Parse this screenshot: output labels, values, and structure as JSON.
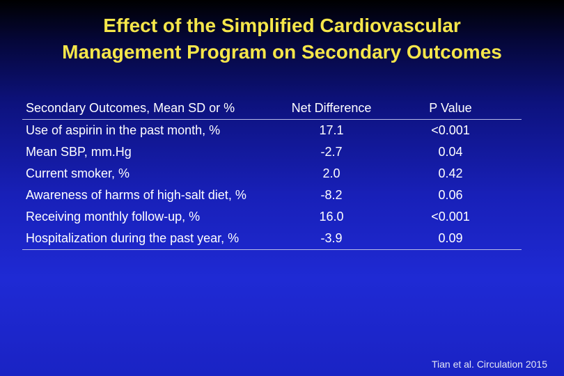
{
  "title": {
    "line1": "Effect of the Simplified Cardiovascular",
    "line2": "Management Program on Secondary Outcomes"
  },
  "table": {
    "headers": [
      "Secondary Outcomes, Mean SD or %",
      "Net Difference",
      "P Value"
    ],
    "rows": [
      [
        "Use of aspirin in the past month, %",
        "17.1",
        "<0.001"
      ],
      [
        "Mean SBP, mm.Hg",
        "-2.7",
        "0.04"
      ],
      [
        "Current smoker, %",
        "2.0",
        "0.42"
      ],
      [
        "Awareness of harms of high-salt diet, %",
        "-8.2",
        "0.06"
      ],
      [
        "Receiving monthly follow-up, %",
        "16.0",
        "<0.001"
      ],
      [
        "Hospitalization during the past year, %",
        "-3.9",
        "0.09"
      ]
    ]
  },
  "citation": "Tian et al. Circulation 2015",
  "colors": {
    "title": "#f5e64a",
    "text": "#ffffff",
    "rule": "#b8bde6"
  }
}
